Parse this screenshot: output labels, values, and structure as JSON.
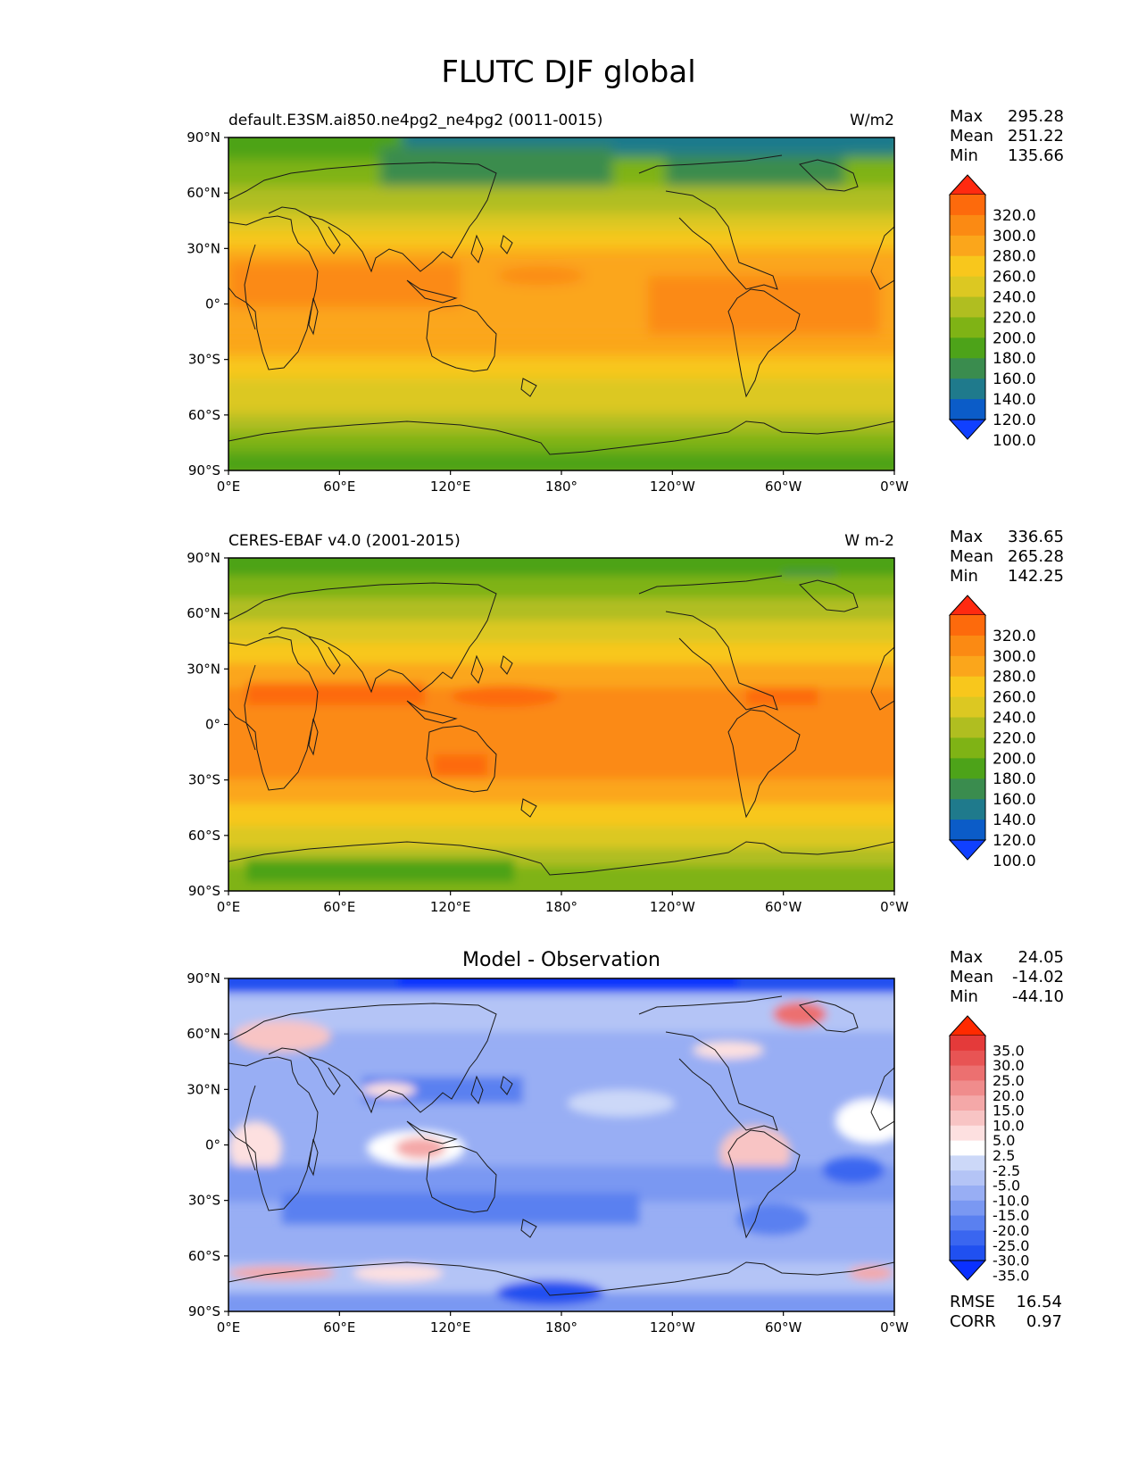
{
  "figure": {
    "title": "FLUTC DJF global"
  },
  "axes": {
    "lat_ticks": [
      "90°N",
      "60°N",
      "30°N",
      "0°",
      "30°S",
      "60°S",
      "90°S"
    ],
    "lon_ticks": [
      "0°E",
      "60°E",
      "120°E",
      "180°",
      "120°W",
      "60°W",
      "0°W"
    ]
  },
  "panels": [
    {
      "id": "model",
      "title_left": "default.E3SM.ai850.ne4pg2_ne4pg2 (0011-0015)",
      "title_center": "",
      "units": "W/m2",
      "stats": [
        {
          "label": "Max",
          "value": "295.28"
        },
        {
          "label": "Mean",
          "value": "251.22"
        },
        {
          "label": "Min",
          "value": "135.66"
        }
      ],
      "colorbar_labels": [
        "320.0",
        "300.0",
        "280.0",
        "260.0",
        "240.0",
        "220.0",
        "200.0",
        "180.0",
        "160.0",
        "140.0",
        "120.0",
        "100.0"
      ]
    },
    {
      "id": "obs",
      "title_left": "CERES-EBAF v4.0 (2001-2015)",
      "title_center": "",
      "units": "W m-2",
      "stats": [
        {
          "label": "Max",
          "value": "336.65"
        },
        {
          "label": "Mean",
          "value": "265.28"
        },
        {
          "label": "Min",
          "value": "142.25"
        }
      ],
      "colorbar_labels": [
        "320.0",
        "300.0",
        "280.0",
        "260.0",
        "240.0",
        "220.0",
        "200.0",
        "180.0",
        "160.0",
        "140.0",
        "120.0",
        "100.0"
      ]
    },
    {
      "id": "diff",
      "title_left": "",
      "title_center": "Model - Observation",
      "units": "",
      "stats": [
        {
          "label": "Max",
          "value": "24.05"
        },
        {
          "label": "Mean",
          "value": "-14.02"
        },
        {
          "label": "Min",
          "value": "-44.10"
        }
      ],
      "colorbar_labels": [
        "35.0",
        "30.0",
        "25.0",
        "20.0",
        "15.0",
        "10.0",
        "5.0",
        "2.5",
        "-2.5",
        "-5.0",
        "-10.0",
        "-15.0",
        "-20.0",
        "-25.0",
        "-30.0",
        "-35.0"
      ],
      "extra_stats": [
        {
          "label": "RMSE",
          "value": "16.54"
        },
        {
          "label": "CORR",
          "value": "0.97"
        }
      ]
    }
  ],
  "colors": {
    "field_scale": [
      "#1040ff",
      "#0b5cc8",
      "#1f7a8c",
      "#3a8c4e",
      "#4da319",
      "#7fb315",
      "#b0be20",
      "#dcc822",
      "#f8c71c",
      "#fba61b",
      "#fb8a13",
      "#fd6a0c",
      "#ff2a10"
    ],
    "diff_scale": [
      "#0a30ff",
      "#2050f0",
      "#3a66f0",
      "#5a80f0",
      "#7a98f2",
      "#98aef4",
      "#b4c4f6",
      "#ccd8f8",
      "#ffffff",
      "#fde0e0",
      "#f8c4c4",
      "#f4a8a8",
      "#f08c8c",
      "#ec7070",
      "#e85454",
      "#e43a3a",
      "#ff2a00"
    ]
  }
}
